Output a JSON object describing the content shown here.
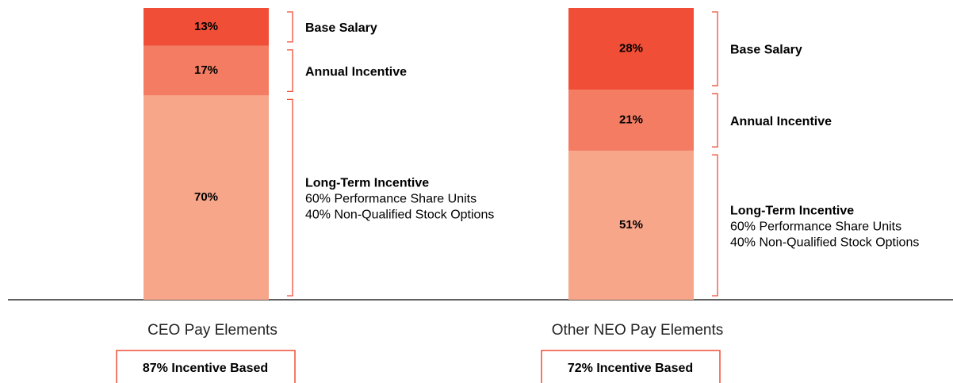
{
  "chart_data": [
    {
      "type": "stacked_bar",
      "categories": [
        "CEO Pay Elements"
      ],
      "ylim": [
        0,
        100
      ],
      "series": [
        {
          "name": "Base Salary",
          "color": "#f04e37",
          "values": [
            13
          ],
          "value_labels": [
            "13%"
          ]
        },
        {
          "name": "Annual Incentive",
          "color": "#f47c62",
          "values": [
            17
          ],
          "value_labels": [
            "17%"
          ]
        },
        {
          "name": "Long-Term Incentive",
          "color": "#f8a68a",
          "values": [
            70
          ],
          "value_labels": [
            "70%"
          ],
          "annotations": [
            "60% Performance Share Units",
            "40% Non-Qualified Stock Options"
          ]
        }
      ],
      "summary": "87% Incentive Based"
    },
    {
      "type": "stacked_bar",
      "categories": [
        "Other NEO Pay Elements"
      ],
      "ylim": [
        0,
        100
      ],
      "series": [
        {
          "name": "Base Salary",
          "color": "#f04e37",
          "values": [
            28
          ],
          "value_labels": [
            "28%"
          ]
        },
        {
          "name": "Annual Incentive",
          "color": "#f47c62",
          "values": [
            21
          ],
          "value_labels": [
            "21%"
          ]
        },
        {
          "name": "Long-Term Incentive",
          "color": "#f8a68a",
          "values": [
            51
          ],
          "value_labels": [
            "51%"
          ],
          "annotations": [
            "60% Performance Share Units",
            "40% Non-Qualified Stock Options"
          ]
        }
      ],
      "summary": "72% Incentive Based"
    }
  ]
}
